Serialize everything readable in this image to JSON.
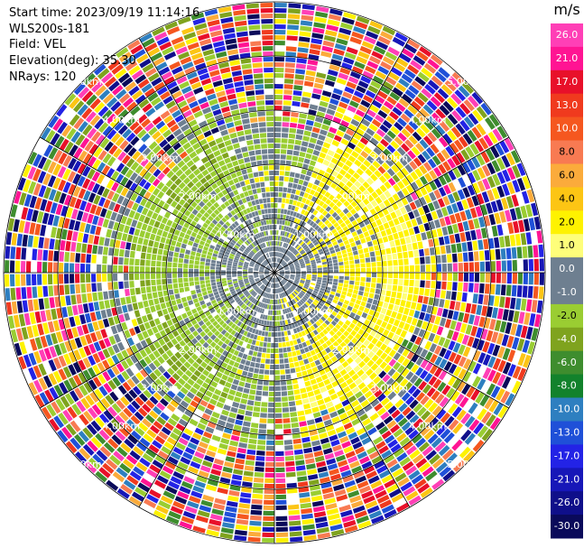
{
  "info": {
    "start_time": "Start time: 2023/09/19 11:14:16",
    "instrument": "WLS200s-181",
    "field": "Field: VEL",
    "elevation": "Elevation(deg): 35.30",
    "nrays": "NRays: 120"
  },
  "colorbar": {
    "unit": "m/s",
    "ticks": [
      "26.0",
      "21.0",
      "17.0",
      "13.0",
      "10.0",
      "8.0",
      "6.0",
      "4.0",
      "2.0",
      "1.0",
      "0.0",
      "-1.0",
      "-2.0",
      "-4.0",
      "-6.0",
      "-8.0",
      "-10.0",
      "-13.0",
      "-17.0",
      "-21.0",
      "-26.0",
      "-30.0"
    ],
    "colors": [
      "#ff3fb6",
      "#ff1493",
      "#e8102a",
      "#f03a1e",
      "#f5571f",
      "#f87a52",
      "#fbab3b",
      "#fcc514",
      "#fef200",
      "#fefe7a",
      "#6e7f90",
      "#6e7f90",
      "#9acd32",
      "#7fa31e",
      "#3e8d2e",
      "#12822c",
      "#2e7fc0",
      "#1f50d8",
      "#2323e6",
      "#1717b8",
      "#0f0f8a",
      "#0a0a5a"
    ]
  },
  "chart_data": {
    "type": "heatmap",
    "projection": "polar PPI",
    "field": "VEL",
    "units": "m/s",
    "nrays": 120,
    "elevation_deg": 35.3,
    "vmin": -30.0,
    "vmax": 26.0,
    "range_ring_labels": [
      "1.00km",
      "2.00km",
      "3.00km",
      "4.00km",
      "5.00km"
    ],
    "grid": true
  }
}
